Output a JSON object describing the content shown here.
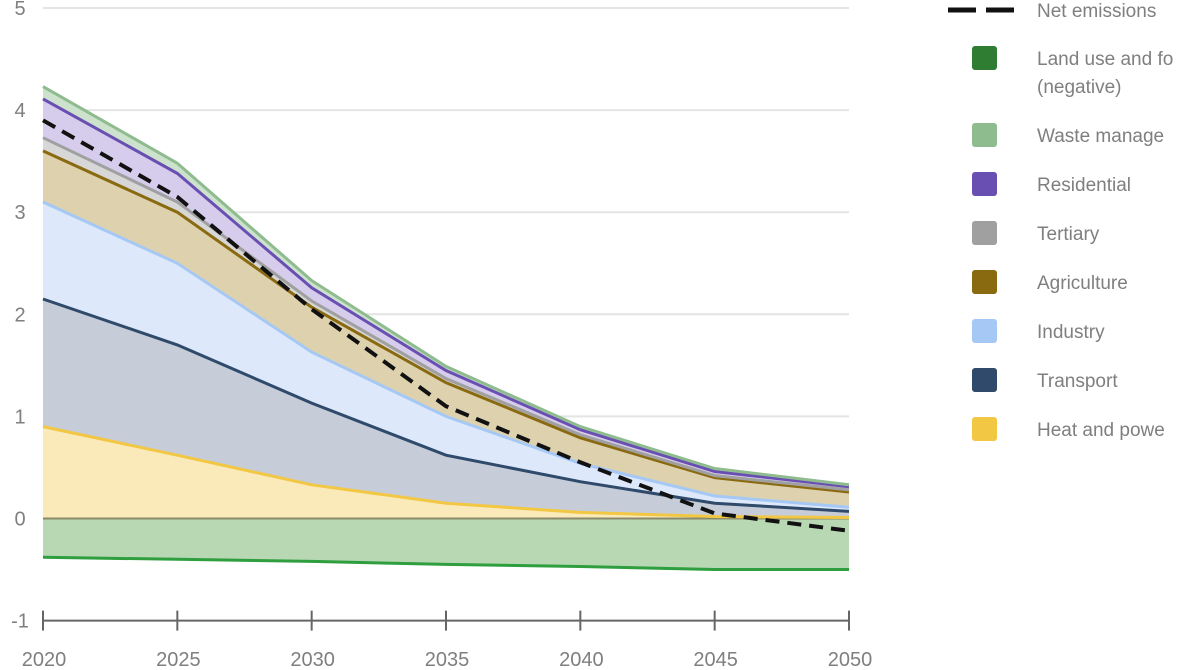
{
  "chart_data": {
    "type": "area",
    "stacked": true,
    "grid": true,
    "legend_position": "right",
    "x": [
      2020,
      2025,
      2030,
      2035,
      2040,
      2045,
      2050
    ],
    "x_ticks": [
      "2020",
      "2025",
      "2030",
      "2035",
      "2040",
      "2045",
      "2050"
    ],
    "ylim": [
      -1,
      5
    ],
    "y_ticks": [
      "-1",
      "0",
      "1",
      "2",
      "3",
      "4",
      "5"
    ],
    "xlabel": "",
    "ylabel": "",
    "title": "",
    "legend": [
      {
        "key": "net",
        "label": "Net emissions",
        "style": "dashed",
        "color": "#111111"
      },
      {
        "key": "land",
        "label": "Land use and fo (negative)",
        "color": "#2e7d32"
      },
      {
        "key": "waste",
        "label": "Waste manage",
        "color": "#8fbc8f"
      },
      {
        "key": "residential",
        "label": "Residential",
        "color": "#6a4fb3"
      },
      {
        "key": "tertiary",
        "label": "Tertiary",
        "color": "#a0a0a0"
      },
      {
        "key": "agriculture",
        "label": "Agriculture",
        "color": "#8a6a10"
      },
      {
        "key": "industry",
        "label": "Industry",
        "color": "#a6c8f5"
      },
      {
        "key": "transport",
        "label": "Transport",
        "color": "#2f4a6a"
      },
      {
        "key": "heat",
        "label": "Heat and powe",
        "color": "#f2c744"
      }
    ],
    "negative_series": [
      {
        "key": "land",
        "values": [
          -0.38,
          -0.4,
          -0.42,
          -0.45,
          -0.47,
          -0.5,
          -0.5
        ],
        "fill": "#b8d8b3",
        "line": "#2e9e3e"
      }
    ],
    "series": [
      {
        "key": "heat",
        "values": [
          0.9,
          0.62,
          0.33,
          0.15,
          0.06,
          0.02,
          0.01
        ],
        "fill": "#faeab9",
        "line": "#f2c744"
      },
      {
        "key": "transport",
        "values": [
          1.25,
          1.08,
          0.8,
          0.47,
          0.3,
          0.13,
          0.06
        ],
        "fill": "#c6ccd8",
        "line": "#2f4a6a"
      },
      {
        "key": "industry",
        "values": [
          0.95,
          0.8,
          0.5,
          0.38,
          0.18,
          0.07,
          0.04
        ],
        "fill": "#dde9fb",
        "line": "#a6c8f5"
      },
      {
        "key": "agriculture",
        "values": [
          0.5,
          0.5,
          0.44,
          0.33,
          0.25,
          0.18,
          0.15
        ],
        "fill": "#ddd1ae",
        "line": "#8a6a10"
      },
      {
        "key": "tertiary",
        "values": [
          0.13,
          0.1,
          0.06,
          0.04,
          0.03,
          0.02,
          0.02
        ],
        "fill": "#d7d7d7",
        "line": "#a0a0a0"
      },
      {
        "key": "residential",
        "values": [
          0.38,
          0.28,
          0.13,
          0.08,
          0.05,
          0.04,
          0.03
        ],
        "fill": "#d6ccec",
        "line": "#6a4fb3"
      },
      {
        "key": "waste",
        "values": [
          0.12,
          0.1,
          0.07,
          0.04,
          0.03,
          0.03,
          0.02
        ],
        "fill": "#cde2cd",
        "line": "#8fbc8f"
      }
    ],
    "net": {
      "key": "net",
      "values": [
        3.9,
        3.15,
        2.05,
        1.1,
        0.55,
        0.05,
        -0.12
      ]
    }
  }
}
